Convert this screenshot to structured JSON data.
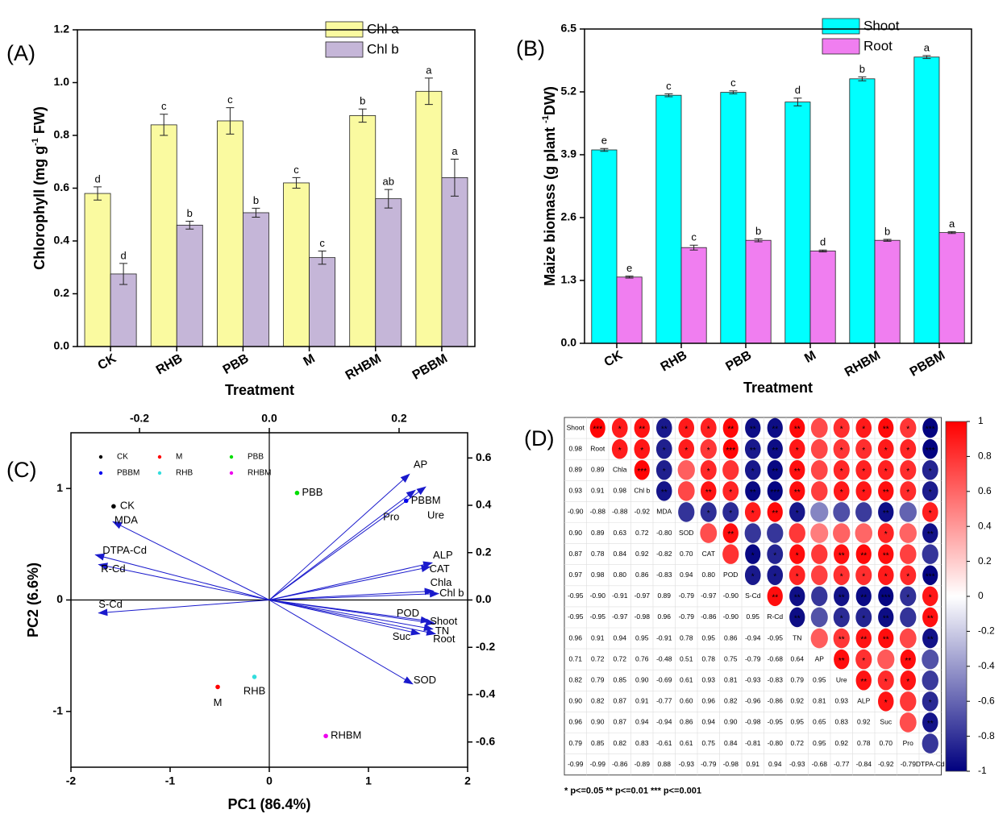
{
  "chart_data": [
    {
      "type": "bar",
      "panel_label": "(A)",
      "ylabel": [
        "Chlorophyll  (mg g",
        "-1",
        " FW)"
      ],
      "xlabel": "Treatment",
      "categories": [
        "CK",
        "RHB",
        "PBB",
        "M",
        "RHBM",
        "PBBM"
      ],
      "series": [
        {
          "name": "Chl a",
          "color": "#fafaa0",
          "values": [
            0.58,
            0.84,
            0.855,
            0.62,
            0.875,
            0.967
          ],
          "errors": [
            0.025,
            0.04,
            0.05,
            0.02,
            0.025,
            0.05
          ],
          "letters": [
            "d",
            "c",
            "c",
            "c",
            "b",
            "a"
          ]
        },
        {
          "name": "Chl b",
          "color": "#c5b6d8",
          "values": [
            0.275,
            0.46,
            0.507,
            0.337,
            0.56,
            0.64
          ],
          "errors": [
            0.04,
            0.015,
            0.017,
            0.025,
            0.035,
            0.07
          ],
          "letters": [
            "d",
            "b",
            "b",
            "c",
            "ab",
            "a"
          ]
        }
      ],
      "ylim": [
        0,
        1.2
      ],
      "yticks": [
        {
          "value": 0,
          "label": "0.0"
        },
        0.2,
        0.4,
        0.6,
        0.8,
        {
          "value": 1,
          "label": "1.0"
        },
        1.2
      ]
    },
    {
      "type": "bar",
      "panel_label": "(B)",
      "ylabel": [
        "Maize biomass (g plant ",
        "-1",
        "DW)"
      ],
      "xlabel": "Treatment",
      "categories": [
        "CK",
        "RHB",
        "PBB",
        "M",
        "RHBM",
        "PBBM"
      ],
      "series": [
        {
          "name": "Shoot",
          "color": "#00ffff",
          "values": [
            4.0,
            5.13,
            5.19,
            4.99,
            5.47,
            5.92
          ],
          "errors": [
            0.03,
            0.03,
            0.03,
            0.08,
            0.04,
            0.03
          ],
          "letters": [
            "e",
            "c",
            "c",
            "d",
            "b",
            "a"
          ]
        },
        {
          "name": "Root",
          "color": "#f07ef0",
          "values": [
            1.37,
            1.98,
            2.13,
            1.91,
            2.13,
            2.29
          ],
          "errors": [
            0.02,
            0.05,
            0.03,
            0.02,
            0.02,
            0.02
          ],
          "letters": [
            "e",
            "c",
            "b",
            "d",
            "b",
            "a"
          ]
        }
      ],
      "ylim": [
        0,
        6.5
      ],
      "yticks": [
        {
          "value": 0,
          "label": "0.0"
        },
        1.3,
        2.6,
        3.9,
        5.2,
        6.5
      ]
    },
    {
      "type": "scatter",
      "panel_label": "(C)",
      "xlabel": "PC1 (86.4%)",
      "ylabel": "PC2 (6.6%)",
      "xlim": [
        -2,
        2
      ],
      "ylim": [
        -1.5,
        1.5
      ],
      "xticks": [
        -2,
        -1,
        0,
        1,
        2
      ],
      "yticks": [
        -1,
        0,
        1
      ],
      "x2lim": [
        -0.3056,
        0.3056
      ],
      "x2ticks": [
        -0.2,
        {
          "value": 0,
          "label": "0.0"
        },
        0.2
      ],
      "y2lim": [
        -0.7065,
        0.7065
      ],
      "y2ticks": [
        -0.6,
        -0.4,
        -0.2,
        {
          "value": 0,
          "label": "0.0"
        },
        0.2,
        0.4,
        0.6
      ],
      "series": [
        {
          "name": "CK",
          "color": "#000000",
          "x": [
            -1.57
          ],
          "values": [
            0.84
          ]
        },
        {
          "name": "M",
          "color": "#ff0000",
          "x": [
            -0.52
          ],
          "values": [
            -0.78
          ]
        },
        {
          "name": "PBB",
          "color": "#00dd00",
          "x": [
            0.28
          ],
          "values": [
            0.96
          ]
        },
        {
          "name": "PBBM",
          "color": "#0000ee",
          "x": [
            1.38
          ],
          "values": [
            0.89
          ]
        },
        {
          "name": "RHB",
          "color": "#33dddd",
          "x": [
            -0.15
          ],
          "values": [
            -0.69
          ]
        },
        {
          "name": "RHBM",
          "color": "#ee00ee",
          "x": [
            0.57
          ],
          "values": [
            -1.22
          ]
        }
      ],
      "loadings": {
        "color": "#1a1acc",
        "names": [
          "AP",
          "Pro",
          "Ure",
          "ALP",
          "CAT",
          "Chla",
          "Chl b",
          "POD",
          "Shoot",
          "TN",
          "Root",
          "Suc",
          "SOD",
          "MDA",
          "DTPA-Cd",
          "R-Cd",
          "S-Cd"
        ],
        "x": [
          0.216,
          0.225,
          0.241,
          0.251,
          0.248,
          0.253,
          0.261,
          0.247,
          0.255,
          0.252,
          0.256,
          0.232,
          0.221,
          -0.241,
          -0.268,
          -0.263,
          -0.263
        ],
        "y": [
          0.532,
          0.464,
          0.478,
          0.157,
          0.14,
          0.038,
          0.027,
          -0.089,
          -0.099,
          -0.123,
          -0.143,
          -0.143,
          -0.355,
          0.331,
          0.191,
          0.15,
          -0.055
        ]
      }
    },
    {
      "type": "correlation",
      "panel_label": "(D)",
      "variables": [
        "Shoot",
        "Root",
        "Chla",
        "Chl b",
        "MDA",
        "SOD",
        "CAT",
        "POD",
        "S-Cd",
        "R-Cd",
        "TN",
        "AP",
        "Ure",
        "ALP",
        "Suc",
        "Pro",
        "DTPA-Cd"
      ],
      "values": [
        [
          0.98
        ],
        [
          0.89,
          0.89
        ],
        [
          0.93,
          0.91,
          0.98
        ],
        [
          -0.9,
          -0.88,
          -0.88,
          -0.92
        ],
        [
          0.9,
          0.89,
          0.63,
          0.72,
          -0.8
        ],
        [
          0.87,
          0.78,
          0.84,
          0.92,
          -0.82,
          0.7
        ],
        [
          0.97,
          0.98,
          0.8,
          0.86,
          -0.83,
          0.94,
          0.8
        ],
        [
          -0.95,
          -0.9,
          -0.91,
          -0.97,
          0.89,
          -0.79,
          -0.97,
          -0.9
        ],
        [
          -0.95,
          -0.95,
          -0.97,
          -0.98,
          0.96,
          -0.79,
          -0.86,
          -0.9,
          0.95
        ],
        [
          0.96,
          0.91,
          0.94,
          0.95,
          -0.91,
          0.78,
          0.95,
          0.86,
          -0.94,
          -0.95
        ],
        [
          0.71,
          0.72,
          0.72,
          0.76,
          -0.48,
          0.51,
          0.78,
          0.75,
          -0.79,
          -0.68,
          0.64
        ],
        [
          0.82,
          0.79,
          0.85,
          0.9,
          -0.69,
          0.61,
          0.93,
          0.81,
          -0.93,
          -0.83,
          0.79,
          0.95
        ],
        [
          0.9,
          0.82,
          0.87,
          0.91,
          -0.77,
          0.6,
          0.96,
          0.82,
          -0.96,
          -0.86,
          0.92,
          0.81,
          0.93
        ],
        [
          0.96,
          0.9,
          0.87,
          0.94,
          -0.94,
          0.86,
          0.94,
          0.9,
          -0.98,
          -0.95,
          0.95,
          0.65,
          0.83,
          0.92
        ],
        [
          0.79,
          0.85,
          0.82,
          0.83,
          -0.61,
          0.61,
          0.75,
          0.84,
          -0.81,
          -0.8,
          0.72,
          0.95,
          0.92,
          0.78,
          0.7
        ],
        [
          -0.99,
          -0.99,
          -0.86,
          -0.89,
          0.88,
          -0.93,
          -0.79,
          -0.98,
          0.91,
          0.94,
          -0.93,
          -0.68,
          -0.77,
          -0.84,
          -0.92,
          -0.79
        ]
      ],
      "value_labels": [
        [
          "0.98"
        ],
        [
          "0.89",
          "0.89"
        ],
        [
          "0.93",
          "0.91",
          "0.98"
        ],
        [
          "-0.90",
          "-0.88",
          "-0.88",
          "-0.92"
        ],
        [
          "0.90",
          "0.89",
          "0.63",
          "0.72",
          "-0.80"
        ],
        [
          "0.87",
          "0.78",
          "0.84",
          "0.92",
          "-0.82",
          "0.70"
        ],
        [
          "0.97",
          "0.98",
          "0.80",
          "0.86",
          "-0.83",
          "0.94",
          "0.80"
        ],
        [
          "-0.95",
          "-0.90",
          "-0.91",
          "-0.97",
          "0.89",
          "-0.79",
          "-0.97",
          "-0.90"
        ],
        [
          "-0.95",
          "-0.95",
          "-0.97",
          "-0.98",
          "0.96",
          "-0.79",
          "-0.86",
          "-0.90",
          "0.95"
        ],
        [
          "0.96",
          "0.91",
          "0.94",
          "0.95",
          "-0.91",
          "0.78",
          "0.95",
          "0.86",
          "-0.94",
          "-0.95"
        ],
        [
          "0.71",
          "0.72",
          "0.72",
          "0.76",
          "-0.48",
          "0.51",
          "0.78",
          "0.75",
          "-0.79",
          "-0.68",
          "0.64"
        ],
        [
          "0.82",
          "0.79",
          "0.85",
          "0.90",
          "-0.69",
          "0.61",
          "0.93",
          "0.81",
          "-0.93",
          "-0.83",
          "0.79",
          "0.95"
        ],
        [
          "0.90",
          "0.82",
          "0.87",
          "0.91",
          "-0.77",
          "0.60",
          "0.96",
          "0.82",
          "-0.96",
          "-0.86",
          "0.92",
          "0.81",
          "0.93"
        ],
        [
          "0.96",
          "0.90",
          "0.87",
          "0.94",
          "-0.94",
          "0.86",
          "0.94",
          "0.90",
          "-0.98",
          "-0.95",
          "0.95",
          "0.65",
          "0.83",
          "0.92"
        ],
        [
          "0.79",
          "0.85",
          "0.82",
          "0.83",
          "-0.61",
          "0.61",
          "0.75",
          "0.84",
          "-0.81",
          "-0.80",
          "0.72",
          "0.95",
          "0.92",
          "0.78",
          "0.70"
        ],
        [
          "-0.99",
          "-0.99",
          "-0.86",
          "-0.89",
          "0.88",
          "-0.93",
          "-0.79",
          "-0.98",
          "0.91",
          "0.94",
          "-0.93",
          "-0.68",
          "-0.77",
          "-0.84",
          "-0.92",
          "-0.79"
        ]
      ],
      "stars": [
        [
          "***",
          "*",
          "**",
          "**",
          "*",
          "*",
          "**",
          "**",
          "**",
          "**",
          null,
          "*",
          "*",
          "**",
          "*",
          "***"
        ],
        [
          "*",
          "*",
          "*",
          "*",
          "*",
          "***",
          "**",
          "**",
          "*",
          null,
          "*",
          "*",
          "*",
          "*",
          "***"
        ],
        [
          "***",
          "*",
          null,
          "*",
          null,
          "*",
          "**",
          "**",
          null,
          "*",
          "*",
          "*",
          "*",
          "*"
        ],
        [
          "**",
          null,
          "**",
          "*",
          "**",
          "***",
          "**",
          null,
          "*",
          "*",
          "**",
          "*",
          "*"
        ],
        [
          null,
          "*",
          "*",
          "*",
          "**",
          "*",
          null,
          null,
          null,
          "**",
          null,
          "*"
        ],
        [
          null,
          "**",
          null,
          null,
          null,
          null,
          null,
          null,
          "*",
          null,
          "**"
        ],
        [
          null,
          "*",
          "*",
          "*",
          null,
          "**",
          "**",
          "**",
          null,
          null
        ],
        [
          "*",
          "*",
          "*",
          null,
          "*",
          "*",
          "*",
          "*",
          "***"
        ],
        [
          "**",
          "**",
          null,
          "**",
          "**",
          "***",
          "*",
          "*"
        ],
        [
          "**",
          null,
          "*",
          "*",
          "**",
          null,
          "**"
        ],
        [
          null,
          "**",
          "**",
          "**",
          null,
          "**"
        ],
        [
          "**",
          "*",
          null,
          "**",
          null
        ],
        [
          "**",
          "*",
          "*",
          null
        ],
        [
          "*",
          null,
          "*"
        ],
        [
          null,
          "**"
        ],
        [
          null
        ]
      ],
      "colors": [
        "#00007f",
        "#ffffff",
        "#ff0000"
      ],
      "zlim": [
        -1,
        1
      ],
      "zticks": [
        1,
        0.8,
        0.6,
        0.4,
        0.2,
        0,
        -0.2,
        -0.4,
        -0.6,
        -0.8,
        -1
      ],
      "note": "* p<=0.05  ** p<=0.01  *** p<=0.001"
    }
  ]
}
